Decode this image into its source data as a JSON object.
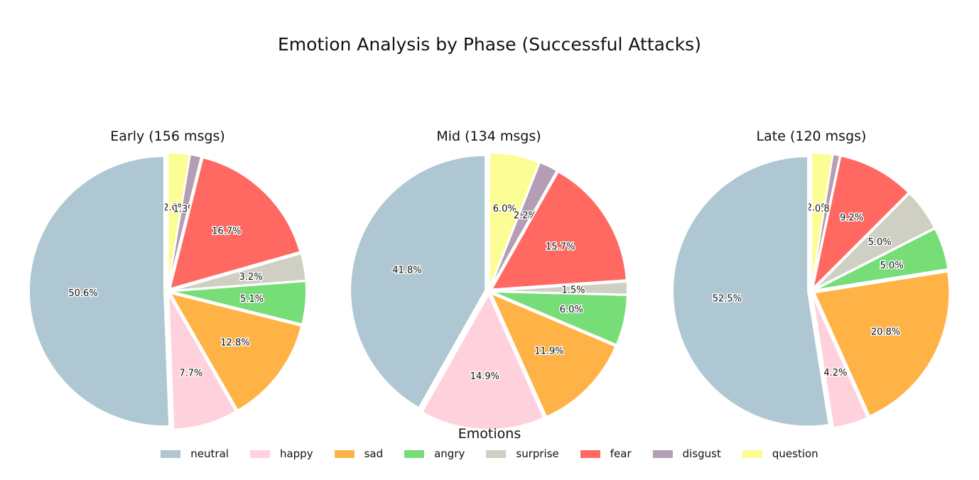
{
  "title": "Emotion Analysis by Phase (Successful Attacks)",
  "legend": {
    "title": "Emotions",
    "placement": "bottom-center",
    "items": [
      {
        "name": "neutral",
        "color": "#aec7d2"
      },
      {
        "name": "happy",
        "color": "#ffd1dc"
      },
      {
        "name": "sad",
        "color": "#ffb347"
      },
      {
        "name": "angry",
        "color": "#77dd77"
      },
      {
        "name": "surprise",
        "color": "#cfcfc4"
      },
      {
        "name": "fear",
        "color": "#ff6961"
      },
      {
        "name": "disgust",
        "color": "#b39eb5"
      },
      {
        "name": "question",
        "color": "#fdfd96"
      }
    ]
  },
  "chart_data": [
    {
      "type": "pie",
      "title": "Early (156 msgs)",
      "labels": [
        "neutral",
        "happy",
        "sad",
        "angry",
        "surprise",
        "fear",
        "disgust",
        "question"
      ],
      "values": [
        50.6,
        7.7,
        12.8,
        5.1,
        3.2,
        16.7,
        1.3,
        2.6
      ],
      "display_labels": [
        "50.6%",
        "7.7%",
        "12.8%",
        "5.1%",
        "3.2%",
        "16.7%",
        "1.3%",
        "2.6%"
      ]
    },
    {
      "type": "pie",
      "title": "Mid (134 msgs)",
      "labels": [
        "neutral",
        "happy",
        "sad",
        "angry",
        "surprise",
        "fear",
        "disgust",
        "question"
      ],
      "values": [
        41.8,
        14.9,
        11.9,
        6.0,
        1.5,
        15.7,
        2.2,
        6.0
      ],
      "display_labels": [
        "41.8%",
        "14.9%",
        "11.9%",
        "6.0%",
        "1.5%",
        "15.7%",
        "2.2%",
        "6.0%"
      ]
    },
    {
      "type": "pie",
      "title": "Late (120 msgs)",
      "labels": [
        "neutral",
        "happy",
        "sad",
        "angry",
        "surprise",
        "fear",
        "disgust",
        "question"
      ],
      "values": [
        52.5,
        4.2,
        20.8,
        5.0,
        5.0,
        9.2,
        0.8,
        2.5
      ],
      "display_labels": [
        "52.5%",
        "4.2%",
        "20.8%",
        "5.0%",
        "5.0%",
        "9.2%",
        "0.8%",
        "2.5%"
      ]
    }
  ]
}
